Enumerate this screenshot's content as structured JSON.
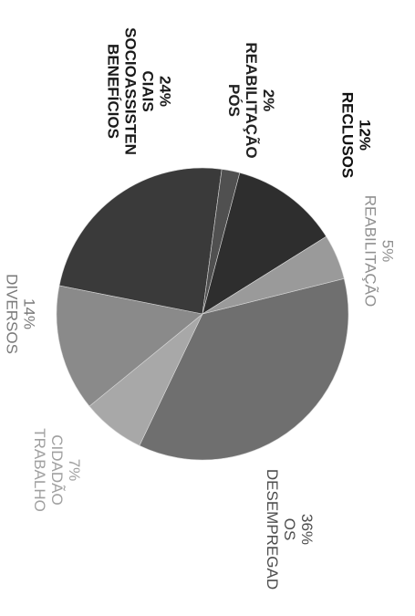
{
  "chart_data": {
    "type": "pie",
    "title": "",
    "slices": [
      {
        "label": "DESEMPREGADOS",
        "label_lines": [
          "DESEMPREGAD",
          "OS"
        ],
        "value": 36,
        "value_label": "36%",
        "color": "#6f6f6f",
        "label_color": "#4d4d4d"
      },
      {
        "label": "TRABALHO CIDADÃO",
        "label_lines": [
          "TRABALHO",
          "CIDADÃO"
        ],
        "value": 7,
        "value_label": "7%",
        "color": "#a8a8a8",
        "label_color": "#a0a0a0"
      },
      {
        "label": "DIVERSOS",
        "label_lines": [
          "DIVERSOS"
        ],
        "value": 14,
        "value_label": "14%",
        "color": "#8a8a8a",
        "label_color": "#7a7a7a"
      },
      {
        "label": "BENEFÍCIOS SOCIOASSISTENCIAIS",
        "label_lines": [
          "BENEFÍCIOS",
          "SOCIOASSISTEN",
          "CIAIS"
        ],
        "value": 24,
        "value_label": "24%",
        "color": "#3a3a3a",
        "label_color": "#1a1a1a"
      },
      {
        "label": "PÓS REABILITAÇÃO",
        "label_lines": [
          "PÓS",
          "REABILITAÇÃO"
        ],
        "value": 2,
        "value_label": "2%",
        "color": "#505050",
        "label_color": "#222222"
      },
      {
        "label": "RECLUSOS",
        "label_lines": [
          "RECLUSOS"
        ],
        "value": 12,
        "value_label": "12%",
        "color": "#2e2e2e",
        "label_color": "#111111"
      },
      {
        "label": "REABILITAÇÃO",
        "label_lines": [
          "REABILITAÇÃO"
        ],
        "value": 5,
        "value_label": "5%",
        "color": "#9a9a9a",
        "label_color": "#909090"
      }
    ]
  }
}
